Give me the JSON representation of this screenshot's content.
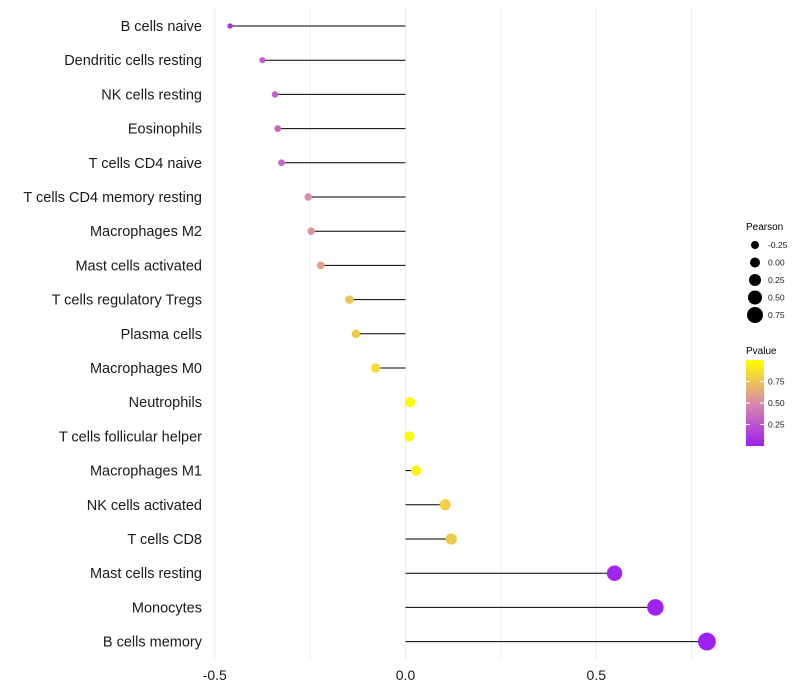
{
  "chart_data": {
    "type": "lollipop",
    "title": "",
    "xlabel": "",
    "ylabel": "",
    "xlim": [
      -0.5,
      0.8
    ],
    "x_ticks": [
      -0.5,
      0.0,
      0.5
    ],
    "x_tick_labels": [
      "-0.5",
      "0.0",
      "0.5"
    ],
    "grid": true,
    "categories": [
      "B cells naive",
      "Dendritic cells resting",
      "NK cells resting",
      "Eosinophils",
      "T cells CD4 naive",
      "T cells CD4 memory resting",
      "Macrophages M2",
      "Mast cells activated",
      "T cells regulatory  Tregs ",
      "Plasma cells",
      "Macrophages M0",
      "Neutrophils",
      "T cells follicular helper",
      "Macrophages M1",
      "NK cells activated",
      "T cells CD8",
      "Mast cells resting",
      "Monocytes",
      "B cells memory"
    ],
    "pearson": [
      -0.46,
      -0.375,
      -0.342,
      -0.335,
      -0.325,
      -0.255,
      -0.247,
      -0.222,
      -0.147,
      -0.13,
      -0.078,
      0.012,
      0.01,
      0.028,
      0.104,
      0.12,
      0.548,
      0.655,
      0.79
    ],
    "pvalue": [
      0.1,
      0.3,
      0.32,
      0.33,
      0.34,
      0.52,
      0.54,
      0.6,
      0.75,
      0.78,
      0.85,
      0.98,
      0.98,
      0.95,
      0.8,
      0.78,
      0.02,
      0.01,
      0.0
    ],
    "legend_size": {
      "title": "Pearson",
      "labels": [
        "-0.25",
        "0.00",
        "0.25",
        "0.50",
        "0.75"
      ],
      "values": [
        -0.25,
        0.0,
        0.25,
        0.5,
        0.75
      ]
    },
    "legend_color": {
      "title": "Pvalue",
      "labels": [
        "0.75",
        "0.50",
        "0.25"
      ],
      "values": [
        0.75,
        0.5,
        0.25
      ],
      "range": [
        0.0,
        1.0
      ],
      "low_color": "#a020f0",
      "mid_color": "#d98aaa",
      "high_color": "#ffff00"
    },
    "stem_color": "#000000",
    "grid_color": "#ebebeb"
  }
}
